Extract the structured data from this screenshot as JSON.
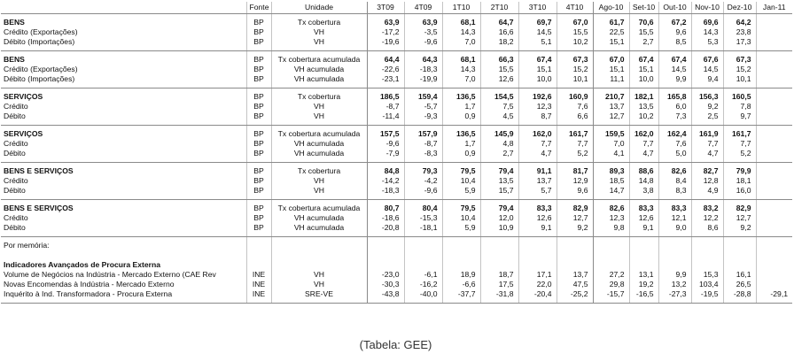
{
  "header": {
    "columns": [
      "Fonte",
      "Unidade",
      "3T09",
      "4T09",
      "1T10",
      "2T10",
      "3T10",
      "4T10",
      "Ago-10",
      "Set-10",
      "Out-10",
      "Nov-10",
      "Dez-10",
      "Jan-11"
    ]
  },
  "groups": [
    {
      "rows": [
        {
          "label": "BENS",
          "source": "BP",
          "unit": "Tx cobertura",
          "values": [
            "63,9",
            "63,9",
            "68,1",
            "64,7",
            "69,7",
            "67,0",
            "61,7",
            "70,6",
            "67,2",
            "69,6",
            "64,2"
          ]
        },
        {
          "label": "Crédito (Exportações)",
          "source": "BP",
          "unit": "VH",
          "values": [
            "-17,2",
            "-3,5",
            "14,3",
            "16,6",
            "14,5",
            "15,5",
            "22,5",
            "15,5",
            "9,6",
            "14,3",
            "23,8"
          ]
        },
        {
          "label": "Débito (Importações)",
          "source": "BP",
          "unit": "VH",
          "values": [
            "-19,6",
            "-9,6",
            "7,0",
            "18,2",
            "5,1",
            "10,2",
            "15,1",
            "2,7",
            "8,5",
            "5,3",
            "17,3"
          ]
        }
      ]
    },
    {
      "rows": [
        {
          "label": "BENS",
          "source": "BP",
          "unit": "Tx cobertura acumulada",
          "values": [
            "64,4",
            "64,3",
            "68,1",
            "66,3",
            "67,4",
            "67,3",
            "67,0",
            "67,4",
            "67,4",
            "67,6",
            "67,3"
          ]
        },
        {
          "label": "Crédito (Exportações)",
          "source": "BP",
          "unit": "VH acumulada",
          "values": [
            "-22,6",
            "-18,3",
            "14,3",
            "15,5",
            "15,1",
            "15,2",
            "15,1",
            "15,1",
            "14,5",
            "14,5",
            "15,2"
          ]
        },
        {
          "label": "Débito (Importações)",
          "source": "BP",
          "unit": "VH acumulada",
          "values": [
            "-23,1",
            "-19,9",
            "7,0",
            "12,6",
            "10,0",
            "10,1",
            "11,1",
            "10,0",
            "9,9",
            "9,4",
            "10,1"
          ]
        }
      ]
    },
    {
      "rows": [
        {
          "label": "SERVIÇOS",
          "source": "BP",
          "unit": "Tx cobertura",
          "values": [
            "186,5",
            "159,4",
            "136,5",
            "154,5",
            "192,6",
            "160,9",
            "210,7",
            "182,1",
            "165,8",
            "156,3",
            "160,5"
          ]
        },
        {
          "label": "Crédito",
          "source": "BP",
          "unit": "VH",
          "values": [
            "-8,7",
            "-5,7",
            "1,7",
            "7,5",
            "12,3",
            "7,6",
            "13,7",
            "13,5",
            "6,0",
            "9,2",
            "7,8"
          ]
        },
        {
          "label": "Débito",
          "source": "BP",
          "unit": "VH",
          "values": [
            "-11,4",
            "-9,3",
            "0,9",
            "4,5",
            "8,7",
            "6,6",
            "12,7",
            "10,2",
            "7,3",
            "2,5",
            "9,7"
          ]
        }
      ]
    },
    {
      "rows": [
        {
          "label": "SERVIÇOS",
          "source": "BP",
          "unit": "Tx cobertura acumulada",
          "values": [
            "157,5",
            "157,9",
            "136,5",
            "145,9",
            "162,0",
            "161,7",
            "159,5",
            "162,0",
            "162,4",
            "161,9",
            "161,7"
          ]
        },
        {
          "label": "Crédito",
          "source": "BP",
          "unit": "VH acumulada",
          "values": [
            "-9,6",
            "-8,7",
            "1,7",
            "4,8",
            "7,7",
            "7,7",
            "7,0",
            "7,7",
            "7,6",
            "7,7",
            "7,7"
          ]
        },
        {
          "label": "Débito",
          "source": "BP",
          "unit": "VH acumulada",
          "values": [
            "-7,9",
            "-8,3",
            "0,9",
            "2,7",
            "4,7",
            "5,2",
            "4,1",
            "4,7",
            "5,0",
            "4,7",
            "5,2"
          ]
        }
      ]
    },
    {
      "rows": [
        {
          "label": "BENS E SERVIÇOS",
          "source": "BP",
          "unit": "Tx cobertura",
          "values": [
            "84,8",
            "79,3",
            "79,5",
            "79,4",
            "91,1",
            "81,7",
            "89,3",
            "88,6",
            "82,6",
            "82,7",
            "79,9"
          ]
        },
        {
          "label": "Crédito",
          "source": "BP",
          "unit": "VH",
          "values": [
            "-14,2",
            "-4,2",
            "10,4",
            "13,5",
            "13,7",
            "12,9",
            "18,5",
            "14,8",
            "8,4",
            "12,8",
            "18,1"
          ]
        },
        {
          "label": "Débito",
          "source": "BP",
          "unit": "VH",
          "values": [
            "-18,3",
            "-9,6",
            "5,9",
            "15,7",
            "5,7",
            "9,6",
            "14,7",
            "3,8",
            "8,3",
            "4,9",
            "16,0"
          ]
        }
      ]
    },
    {
      "rows": [
        {
          "label": "BENS E SERVIÇOS",
          "source": "BP",
          "unit": "Tx cobertura acumulada",
          "values": [
            "80,7",
            "80,4",
            "79,5",
            "79,4",
            "83,3",
            "82,9",
            "82,6",
            "83,3",
            "83,3",
            "83,2",
            "82,9"
          ]
        },
        {
          "label": "Crédito",
          "source": "BP",
          "unit": "VH acumulada",
          "values": [
            "-18,6",
            "-15,3",
            "10,4",
            "12,0",
            "12,6",
            "12,7",
            "12,3",
            "12,6",
            "12,1",
            "12,2",
            "12,7"
          ]
        },
        {
          "label": "Débito",
          "source": "BP",
          "unit": "VH acumulada",
          "values": [
            "-20,8",
            "-18,1",
            "5,9",
            "10,9",
            "9,1",
            "9,2",
            "9,8",
            "9,1",
            "9,0",
            "8,6",
            "9,2"
          ]
        }
      ]
    }
  ],
  "memo": {
    "note": "Por memória:",
    "title": "Indicadores Avançados de Procura Externa",
    "rows": [
      {
        "label": "Volume de Negócios na Indústria - Mercado Externo (CAE Rev",
        "source": "INE",
        "unit": "VH",
        "values": [
          "-23,0",
          "-6,1",
          "18,9",
          "18,7",
          "17,1",
          "13,7",
          "27,2",
          "13,1",
          "9,9",
          "15,3",
          "16,1"
        ]
      },
      {
        "label": "Novas Encomendas à Indústria - Mercado Externo",
        "source": "INE",
        "unit": "VH",
        "values": [
          "-30,3",
          "-16,2",
          "-6,6",
          "17,5",
          "22,0",
          "47,5",
          "29,8",
          "19,2",
          "13,2",
          "103,4",
          "26,5"
        ]
      },
      {
        "label": "Inquérito à Ind. Transformadora - Procura Externa",
        "source": "INE",
        "unit": "SRE-VE",
        "values": [
          "-43,8",
          "-40,0",
          "-37,7",
          "-31,8",
          "-20,4",
          "-25,2",
          "-15,7",
          "-16,5",
          "-27,3",
          "-19,5",
          "-28,8",
          "-29,1"
        ]
      }
    ]
  },
  "caption": "(Tabela: GEE)"
}
